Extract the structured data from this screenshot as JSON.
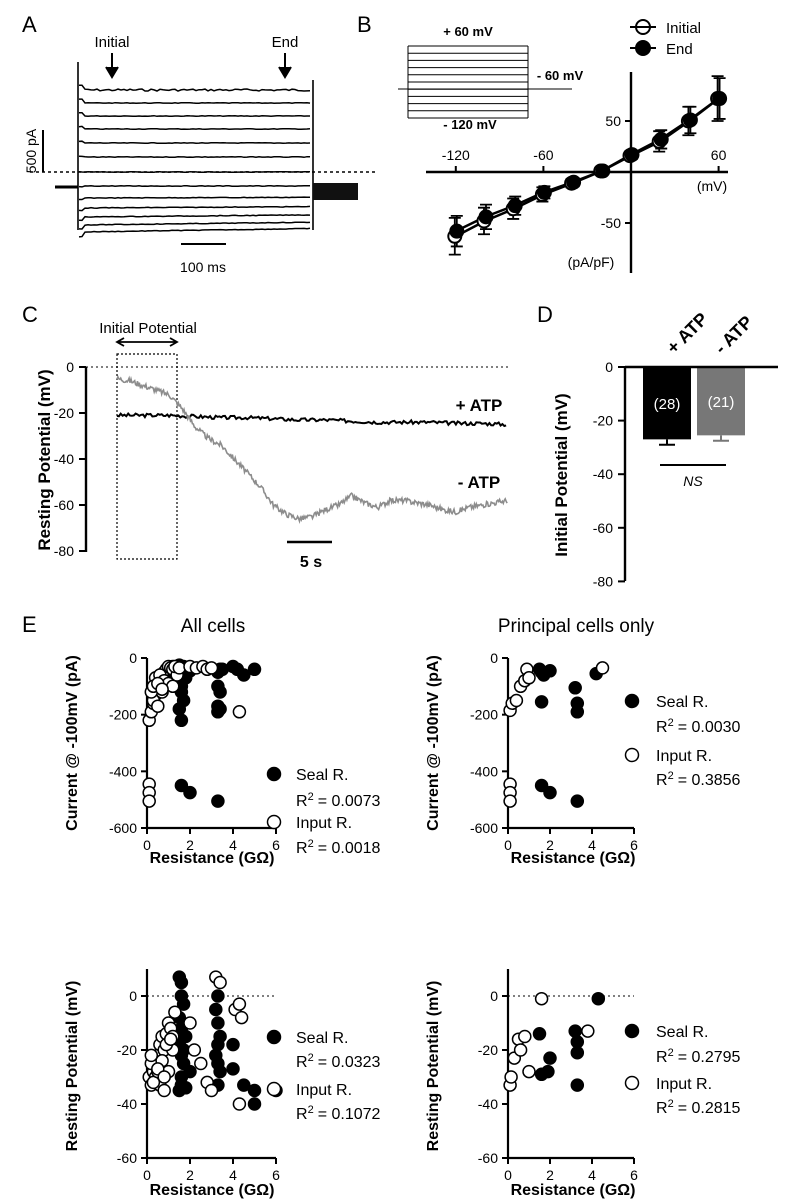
{
  "figure": {
    "panel_letters": [
      "A",
      "B",
      "C",
      "D",
      "E"
    ]
  },
  "chart_data": [
    {
      "panel": "A",
      "type": "line",
      "annotations": [
        "Initial",
        "End"
      ],
      "scalebar_current": "500 pA",
      "scalebar_time": "100 ms",
      "trace_count": 13
    },
    {
      "panel": "B",
      "type": "line",
      "xlabel": "(mV)",
      "ylabel": "(pA/pF)",
      "xlim": [
        -135,
        65
      ],
      "ylim": [
        -70,
        75
      ],
      "x_ticks": [
        -120,
        -60,
        60
      ],
      "y_ticks": [
        50,
        -50
      ],
      "x": [
        -120,
        -100,
        -80,
        -60,
        -40,
        -20,
        0,
        20,
        40,
        60
      ],
      "series": [
        {
          "name": "Initial",
          "marker": "open-circle",
          "values": [
            -63,
            -48,
            -36,
            -22,
            -11,
            1,
            16,
            30,
            50,
            72
          ],
          "error": [
            18,
            13,
            10,
            7,
            4,
            2,
            4,
            10,
            14,
            22
          ]
        },
        {
          "name": "End",
          "marker": "filled-circle",
          "values": [
            -58,
            -44,
            -33,
            -20,
            -10,
            1,
            17,
            32,
            51,
            72
          ],
          "error": [
            15,
            12,
            9,
            6,
            4,
            2,
            4,
            9,
            13,
            20
          ]
        }
      ],
      "protocol_labels": [
        "+ 60 mV",
        "- 60 mV",
        "- 120 mV"
      ]
    },
    {
      "panel": "C",
      "type": "line",
      "ylabel": "Resting Potential (mV)",
      "ylim": [
        -80,
        0
      ],
      "y_ticks": [
        0,
        -20,
        -40,
        -60,
        -80
      ],
      "box_label": "Initial Potential",
      "scalebar_time": "5 s",
      "series": [
        {
          "name": "+ ATP",
          "color": "#000000",
          "t": [
            0,
            2,
            4,
            6,
            8,
            10,
            12,
            14,
            16,
            18,
            20,
            22,
            24,
            26,
            28,
            30
          ],
          "values": [
            -21,
            -21,
            -21,
            -21.5,
            -22,
            -22,
            -22.5,
            -23,
            -23,
            -23.5,
            -24,
            -24,
            -24,
            -24.5,
            -24.5,
            -25
          ]
        },
        {
          "name": "- ATP",
          "color": "#8c8c8c",
          "t": [
            0,
            1,
            2,
            3,
            4,
            5,
            6,
            7,
            8,
            9,
            10,
            11,
            12,
            13,
            14,
            15,
            16,
            17,
            18,
            19,
            20,
            21,
            22,
            23,
            24,
            25,
            26,
            27,
            28,
            29,
            30
          ],
          "values": [
            -5,
            -6,
            -8,
            -10,
            -12,
            -18,
            -26,
            -31,
            -34,
            -40,
            -46,
            -52,
            -60,
            -64,
            -66,
            -65,
            -62,
            -60,
            -56,
            -59,
            -61,
            -58,
            -58,
            -59,
            -60,
            -62,
            -63,
            -61,
            -60,
            -59,
            -58
          ]
        }
      ]
    },
    {
      "panel": "D",
      "type": "bar",
      "ylabel": "Initial Potential (mV)",
      "ylim": [
        -80,
        0
      ],
      "y_ticks": [
        0,
        -20,
        -40,
        -60,
        -80
      ],
      "categories": [
        "+ ATP",
        "- ATP"
      ],
      "values": [
        -27,
        -25.5
      ],
      "error": [
        2,
        2
      ],
      "n_labels": [
        "(28)",
        "(21)"
      ],
      "colors": [
        "#000000",
        "#777777"
      ],
      "significance": "NS"
    },
    {
      "panel": "E1",
      "type": "scatter",
      "column_title": "All cells",
      "xlabel": "Resistance (GΩ)",
      "ylabel": "Current @ -100mV (pA)",
      "xlim": [
        0,
        6
      ],
      "ylim": [
        -600,
        0
      ],
      "x_ticks": [
        0,
        2,
        4,
        6
      ],
      "y_ticks": [
        0,
        -200,
        -400,
        -600
      ],
      "series": [
        {
          "name": "Seal R.",
          "r2_prefix": "R",
          "r2_value": "= 0.0073",
          "marker": "filled",
          "x": [
            1.2,
            1.4,
            1.5,
            1.6,
            1.7,
            1.8,
            1.9,
            2.0,
            1.3,
            1.5,
            1.6,
            1.8,
            1.6,
            1.7,
            1.5,
            1.6,
            3.3,
            3.4,
            3.3,
            3.4,
            3.3,
            3.4,
            3.3,
            3.5,
            4.0,
            4.2,
            4.5,
            5.0,
            1.6,
            2.0,
            3.3,
            1.5,
            1.7
          ],
          "y": [
            -30,
            -35,
            -40,
            -45,
            -50,
            -35,
            -40,
            -45,
            -60,
            -80,
            -100,
            -70,
            -120,
            -150,
            -180,
            -220,
            -50,
            -40,
            -100,
            -120,
            -170,
            -180,
            -190,
            -40,
            -30,
            -40,
            -60,
            -40,
            -450,
            -475,
            -505,
            -25,
            -30
          ]
        },
        {
          "name": "Input R.",
          "r2_prefix": "R",
          "r2_value": "= 0.0018",
          "marker": "open",
          "x": [
            0.1,
            0.2,
            0.3,
            0.4,
            0.5,
            0.6,
            0.7,
            0.8,
            0.9,
            1.0,
            1.1,
            1.2,
            0.3,
            0.5,
            0.7,
            0.9,
            0.4,
            0.6,
            0.8,
            1.0,
            1.2,
            1.4,
            0.2,
            0.3,
            0.5,
            0.7,
            1.3,
            1.5,
            2.0,
            2.3,
            2.6,
            2.8,
            3.0,
            4.3,
            0.1,
            0.1,
            0.1
          ],
          "y": [
            -220,
            -190,
            -160,
            -130,
            -100,
            -80,
            -60,
            -50,
            -40,
            -30,
            -35,
            -40,
            -150,
            -170,
            -120,
            -90,
            -70,
            -60,
            -80,
            -90,
            -100,
            -60,
            -120,
            -100,
            -90,
            -110,
            -30,
            -35,
            -30,
            -35,
            -30,
            -40,
            -35,
            -190,
            -445,
            -475,
            -505
          ]
        }
      ]
    },
    {
      "panel": "E2",
      "type": "scatter",
      "column_title": "Principal cells only",
      "xlabel": "Resistance (GΩ)",
      "ylabel": "Current @ -100mV (pA)",
      "xlim": [
        0,
        6
      ],
      "ylim": [
        -600,
        0
      ],
      "x_ticks": [
        0,
        2,
        4,
        6
      ],
      "y_ticks": [
        0,
        -200,
        -400,
        -600
      ],
      "series": [
        {
          "name": "Seal R.",
          "r2_prefix": "R",
          "r2_value": "= 0.0030",
          "marker": "filled",
          "x": [
            1.5,
            1.6,
            1.7,
            2.0,
            1.6,
            3.2,
            3.3,
            3.3,
            4.2,
            1.6,
            2.0,
            3.3
          ],
          "y": [
            -40,
            -50,
            -60,
            -45,
            -155,
            -105,
            -160,
            -190,
            -55,
            -450,
            -475,
            -505
          ]
        },
        {
          "name": "Input R.",
          "r2_prefix": "R",
          "r2_value": "= 0.3856",
          "marker": "open",
          "x": [
            0.1,
            0.2,
            0.4,
            0.6,
            0.8,
            0.9,
            1.0,
            4.5,
            0.1,
            0.1,
            0.1
          ],
          "y": [
            -185,
            -160,
            -150,
            -100,
            -80,
            -40,
            -70,
            -35,
            -445,
            -475,
            -505
          ]
        }
      ]
    },
    {
      "panel": "E3",
      "type": "scatter",
      "xlabel": "Resistance (GΩ)",
      "ylabel": "Resting Potential (mV)",
      "xlim": [
        0,
        6
      ],
      "ylim": [
        -60,
        10
      ],
      "x_ticks": [
        0,
        2,
        4,
        6
      ],
      "y_ticks": [
        0,
        -20,
        -40,
        -60
      ],
      "series": [
        {
          "name": "Seal R.",
          "r2_prefix": "R",
          "r2_value": "= 0.0323",
          "marker": "filled",
          "x": [
            1.5,
            1.6,
            1.6,
            1.7,
            1.5,
            1.6,
            1.8,
            1.5,
            1.6,
            1.7,
            2.0,
            1.6,
            1.6,
            1.5,
            1.7,
            3.3,
            3.2,
            3.3,
            3.4,
            3.3,
            3.2,
            3.3,
            3.4,
            3.3,
            4.0,
            4.0,
            4.5,
            5.0,
            5.0,
            6.0,
            1.8
          ],
          "y": [
            7,
            5,
            0,
            -3,
            -8,
            -12,
            -15,
            -18,
            -22,
            -25,
            -28,
            -30,
            -33,
            -35,
            -20,
            0,
            -5,
            -10,
            -15,
            -18,
            -22,
            -25,
            -28,
            -33,
            -18,
            -27,
            -33,
            -35,
            -40,
            -35,
            -34
          ]
        },
        {
          "name": "Input R.",
          "r2_prefix": "R",
          "r2_value": "= 0.1072",
          "marker": "open",
          "x": [
            0.1,
            0.2,
            0.3,
            0.4,
            0.5,
            0.6,
            0.7,
            0.8,
            0.9,
            1.0,
            1.1,
            1.2,
            0.2,
            0.4,
            0.6,
            0.8,
            1.0,
            1.2,
            0.3,
            0.5,
            0.7,
            0.9,
            1.1,
            0.2,
            0.5,
            0.8,
            1.3,
            2.0,
            2.2,
            2.5,
            2.8,
            3.0,
            3.2,
            3.4,
            4.1,
            4.3,
            4.4,
            4.3
          ],
          "y": [
            -30,
            -33,
            -28,
            -25,
            -22,
            -18,
            -15,
            -20,
            -14,
            -10,
            -12,
            -15,
            -25,
            -30,
            -33,
            -35,
            -28,
            -20,
            -32,
            -28,
            -24,
            -18,
            -16,
            -22,
            -27,
            -30,
            -6,
            -10,
            -20,
            -25,
            -32,
            -35,
            7,
            5,
            -5,
            -3,
            -8,
            -40
          ]
        }
      ]
    },
    {
      "panel": "E4",
      "type": "scatter",
      "xlabel": "Resistance (GΩ)",
      "ylabel": "Resting Potential (mV)",
      "xlim": [
        0,
        6
      ],
      "ylim": [
        -60,
        10
      ],
      "x_ticks": [
        0,
        2,
        4,
        6
      ],
      "y_ticks": [
        0,
        -20,
        -40,
        -60
      ],
      "series": [
        {
          "name": "Seal R.",
          "r2_prefix": "R",
          "r2_value": "= 0.2795",
          "marker": "filled",
          "x": [
            1.5,
            1.6,
            1.9,
            2.0,
            3.2,
            3.3,
            3.3,
            3.3,
            4.3
          ],
          "y": [
            -14,
            -29,
            -28,
            -23,
            -13,
            -17,
            -21,
            -33,
            -1
          ]
        },
        {
          "name": "Input R.",
          "r2_prefix": "R",
          "r2_value": "= 0.2815",
          "marker": "open",
          "x": [
            0.1,
            0.15,
            0.3,
            0.5,
            0.6,
            0.8,
            1.0,
            1.6,
            3.8
          ],
          "y": [
            -33,
            -30,
            -23,
            -16,
            -20,
            -15,
            -28,
            -1,
            -13
          ]
        }
      ]
    }
  ]
}
